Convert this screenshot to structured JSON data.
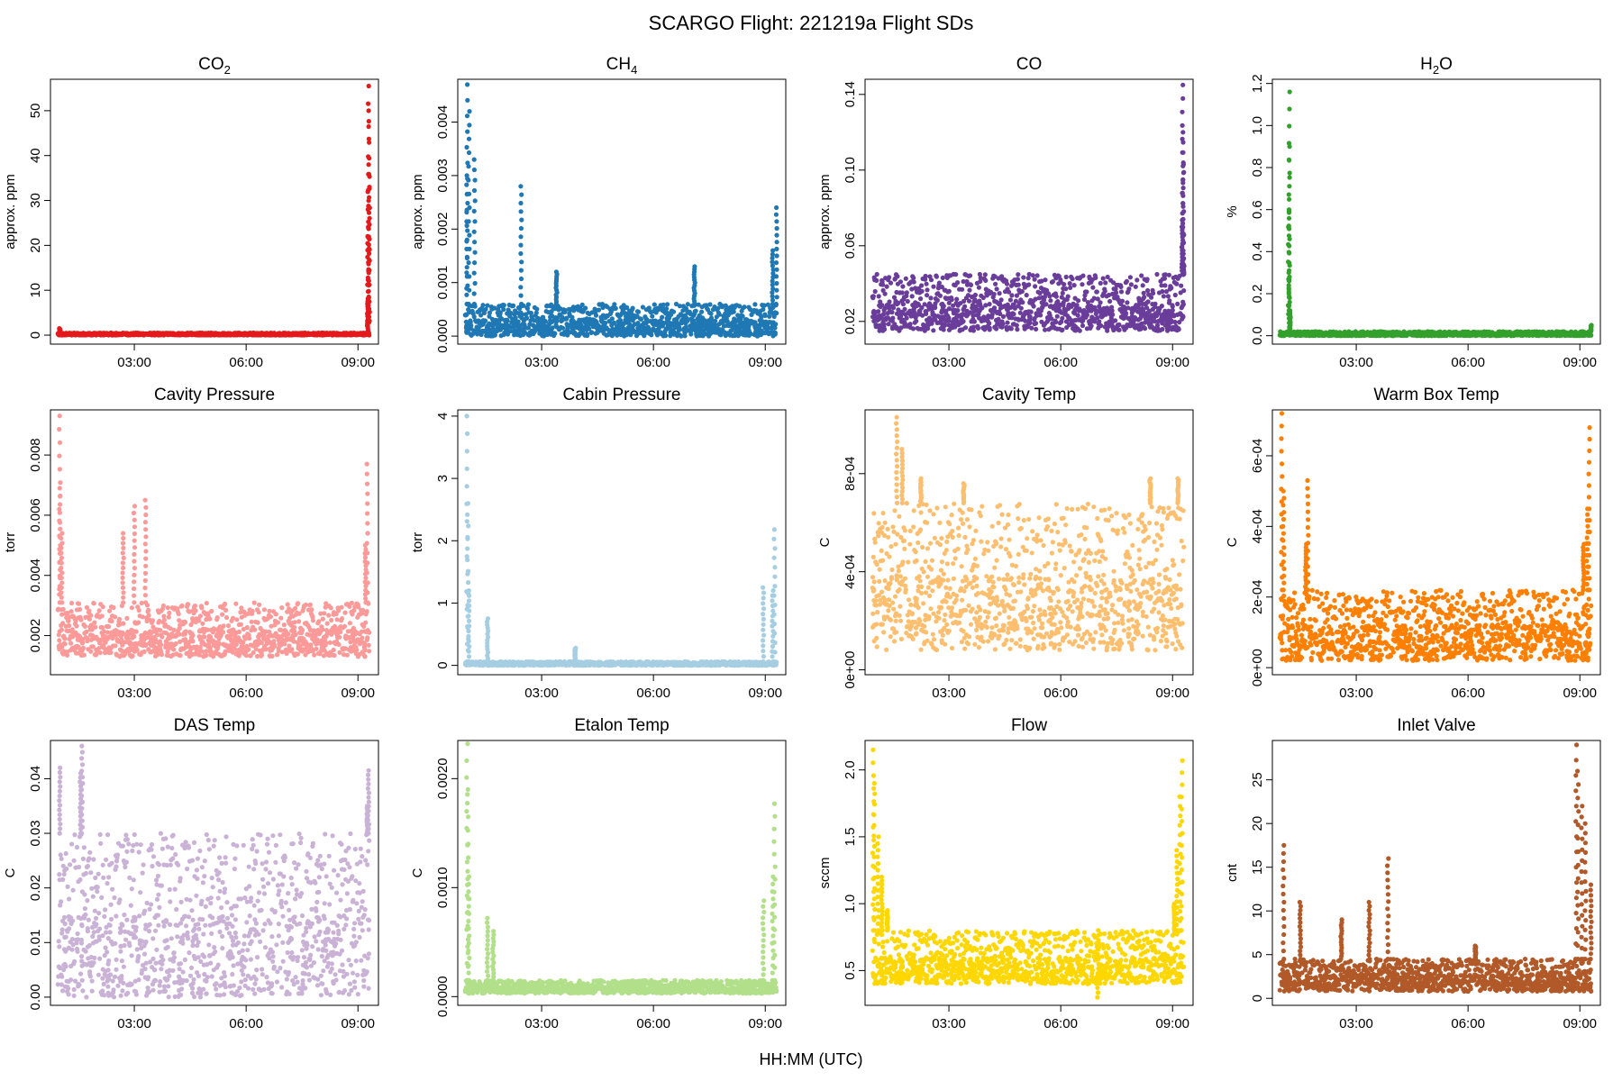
{
  "figure": {
    "title": "SCARGO Flight: 221219a  Flight SDs",
    "xlabel": "HH:MM (UTC)"
  },
  "chart_data": [
    {
      "name": "co2",
      "type": "scatter",
      "title": "CO2",
      "title_sub": "2",
      "title_base": "CO",
      "ylabel": "approx. ppm",
      "color": "#E31A1C",
      "x_range_hours": [
        0.75,
        9.55
      ],
      "ylim": [
        -2.0,
        57.0
      ],
      "y_ticks": [
        0,
        10,
        20,
        30,
        40,
        50
      ],
      "y_tick_labels": [
        "0",
        "10",
        "20",
        "30",
        "40",
        "50"
      ],
      "x_ticks": [
        3,
        6,
        9
      ],
      "x_tick_labels": [
        "03:00",
        "06:00",
        "09:00"
      ],
      "series": {
        "t_start": 0.95,
        "t_end": 9.3,
        "baseline_min": 0.0,
        "baseline_max": 0.5,
        "spikes": [
          {
            "t": 1.0,
            "v": 1.5
          },
          {
            "t": 9.28,
            "v": 55.5
          },
          {
            "t": 9.29,
            "v": 50.0
          },
          {
            "t": 9.3,
            "v": 38.0
          },
          {
            "t": 9.27,
            "v": 22.0
          },
          {
            "t": 9.3,
            "v": 33.0
          },
          {
            "t": 9.26,
            "v": 8.0
          }
        ]
      }
    },
    {
      "name": "ch4",
      "type": "scatter",
      "title": "CH4",
      "title_sub": "4",
      "title_base": "CH",
      "ylabel": "approx. ppm",
      "color": "#1F78B4",
      "x_range_hours": [
        0.75,
        9.55
      ],
      "ylim": [
        -0.00015,
        0.0048
      ],
      "y_ticks": [
        0.0,
        0.001,
        0.002,
        0.003,
        0.004
      ],
      "y_tick_labels": [
        "0.000",
        "0.001",
        "0.002",
        "0.003",
        "0.004"
      ],
      "x_ticks": [
        3,
        6,
        9
      ],
      "x_tick_labels": [
        "03:00",
        "06:00",
        "09:00"
      ],
      "series": {
        "t_start": 0.95,
        "t_end": 9.3,
        "baseline_min": 0.0,
        "baseline_max": 0.0006,
        "spikes": [
          {
            "t": 1.0,
            "v": 0.0047
          },
          {
            "t": 1.05,
            "v": 0.0042
          },
          {
            "t": 1.2,
            "v": 0.0033
          },
          {
            "t": 2.45,
            "v": 0.0028
          },
          {
            "t": 1.0,
            "v": 0.003
          },
          {
            "t": 3.4,
            "v": 0.0012
          },
          {
            "t": 7.1,
            "v": 0.0013
          },
          {
            "t": 9.3,
            "v": 0.0024
          },
          {
            "t": 9.2,
            "v": 0.0016
          }
        ]
      }
    },
    {
      "name": "co",
      "type": "scatter",
      "title": "CO",
      "title_sub": "",
      "title_base": "CO",
      "ylabel": "approx. ppm",
      "color": "#6A3D9A",
      "x_range_hours": [
        0.75,
        9.55
      ],
      "ylim": [
        0.008,
        0.148
      ],
      "y_ticks": [
        0.02,
        0.06,
        0.1,
        0.14
      ],
      "y_tick_labels": [
        "0.02",
        "0.06",
        "0.10",
        "0.14"
      ],
      "x_ticks": [
        3,
        6,
        9
      ],
      "x_tick_labels": [
        "03:00",
        "06:00",
        "09:00"
      ],
      "series": {
        "t_start": 0.95,
        "t_end": 9.3,
        "baseline_min": 0.015,
        "baseline_max": 0.045,
        "spikes": [
          {
            "t": 9.27,
            "v": 0.145
          },
          {
            "t": 9.28,
            "v": 0.12
          },
          {
            "t": 9.29,
            "v": 0.103
          },
          {
            "t": 9.26,
            "v": 0.07
          },
          {
            "t": 9.3,
            "v": 0.05
          }
        ]
      }
    },
    {
      "name": "h2o",
      "type": "scatter",
      "title": "H2O",
      "title_sub": "2",
      "title_base": "H",
      "title_tail": "O",
      "ylabel": "%",
      "color": "#33A02C",
      "x_range_hours": [
        0.75,
        9.55
      ],
      "ylim": [
        -0.04,
        1.22
      ],
      "y_ticks": [
        0.0,
        0.2,
        0.4,
        0.6,
        0.8,
        1.0,
        1.2
      ],
      "y_tick_labels": [
        "0.0",
        "0.2",
        "0.4",
        "0.6",
        "0.8",
        "1.0",
        "1.2"
      ],
      "x_ticks": [
        3,
        6,
        9
      ],
      "x_tick_labels": [
        "03:00",
        "06:00",
        "09:00"
      ],
      "series": {
        "t_start": 0.95,
        "t_end": 9.3,
        "baseline_min": 0.0,
        "baseline_max": 0.02,
        "spikes": [
          {
            "t": 1.2,
            "v": 1.16
          },
          {
            "t": 1.2,
            "v": 0.9
          },
          {
            "t": 1.19,
            "v": 0.6
          },
          {
            "t": 1.2,
            "v": 0.3
          },
          {
            "t": 1.22,
            "v": 0.12
          },
          {
            "t": 9.3,
            "v": 0.05
          }
        ]
      }
    },
    {
      "name": "cavity-pressure",
      "type": "scatter",
      "title": "Cavity Pressure",
      "ylabel": "torr",
      "color": "#FB9A99",
      "x_range_hours": [
        0.75,
        9.55
      ],
      "ylim": [
        0.0007,
        0.0095
      ],
      "y_ticks": [
        0.002,
        0.004,
        0.006,
        0.008
      ],
      "y_tick_labels": [
        "0.002",
        "0.004",
        "0.006",
        "0.008"
      ],
      "x_ticks": [
        3,
        6,
        9
      ],
      "x_tick_labels": [
        "03:00",
        "06:00",
        "09:00"
      ],
      "series": {
        "t_start": 0.95,
        "t_end": 9.3,
        "baseline_min": 0.0013,
        "baseline_max": 0.0031,
        "spikes": [
          {
            "t": 1.0,
            "v": 0.0093
          },
          {
            "t": 1.0,
            "v": 0.0069
          },
          {
            "t": 1.05,
            "v": 0.0054
          },
          {
            "t": 2.7,
            "v": 0.0054
          },
          {
            "t": 3.0,
            "v": 0.0063
          },
          {
            "t": 3.3,
            "v": 0.0065
          },
          {
            "t": 9.25,
            "v": 0.0077
          },
          {
            "t": 9.2,
            "v": 0.005
          }
        ]
      }
    },
    {
      "name": "cabin-pressure",
      "type": "scatter",
      "title": "Cabin Pressure",
      "ylabel": "torr",
      "color": "#A6CEE3",
      "x_range_hours": [
        0.75,
        9.55
      ],
      "ylim": [
        -0.15,
        4.1
      ],
      "y_ticks": [
        0,
        1,
        2,
        3,
        4
      ],
      "y_tick_labels": [
        "0",
        "1",
        "2",
        "3",
        "4"
      ],
      "x_ticks": [
        3,
        6,
        9
      ],
      "x_tick_labels": [
        "03:00",
        "06:00",
        "09:00"
      ],
      "series": {
        "t_start": 0.95,
        "t_end": 9.3,
        "baseline_min": 0.0,
        "baseline_max": 0.06,
        "spikes": [
          {
            "t": 1.0,
            "v": 4.0
          },
          {
            "t": 1.02,
            "v": 2.6
          },
          {
            "t": 1.05,
            "v": 1.2
          },
          {
            "t": 1.55,
            "v": 0.75
          },
          {
            "t": 3.9,
            "v": 0.28
          },
          {
            "t": 8.95,
            "v": 1.25
          },
          {
            "t": 9.25,
            "v": 2.18
          },
          {
            "t": 9.2,
            "v": 1.2
          }
        ]
      }
    },
    {
      "name": "cavity-temp",
      "type": "scatter",
      "title": "Cavity Temp",
      "ylabel": "C",
      "color": "#FDBF6F",
      "x_range_hours": [
        0.75,
        9.55
      ],
      "ylim": [
        -2e-05,
        0.00106
      ],
      "y_ticks": [
        0.0,
        0.0004,
        0.0008
      ],
      "y_tick_labels": [
        "0e+00",
        "4e-04",
        "8e-04"
      ],
      "x_ticks": [
        3,
        6,
        9
      ],
      "x_tick_labels": [
        "03:00",
        "06:00",
        "09:00"
      ],
      "series": {
        "t_start": 0.95,
        "t_end": 9.3,
        "baseline_min": 8e-05,
        "baseline_max": 0.00068,
        "spikes": [
          {
            "t": 1.6,
            "v": 0.00103
          },
          {
            "t": 1.75,
            "v": 0.0009
          },
          {
            "t": 2.25,
            "v": 0.00078
          },
          {
            "t": 3.4,
            "v": 0.00076
          },
          {
            "t": 8.4,
            "v": 0.00078
          },
          {
            "t": 9.15,
            "v": 0.00078
          }
        ]
      }
    },
    {
      "name": "warm-box-temp",
      "type": "scatter",
      "title": "Warm Box Temp",
      "ylabel": "C",
      "color": "#FF7F00",
      "x_range_hours": [
        0.75,
        9.55
      ],
      "ylim": [
        -2e-05,
        0.00073
      ],
      "y_ticks": [
        0.0,
        0.0002,
        0.0004,
        0.0006
      ],
      "y_tick_labels": [
        "0e+00",
        "2e-04",
        "4e-04",
        "6e-04"
      ],
      "x_ticks": [
        3,
        6,
        9
      ],
      "x_tick_labels": [
        "03:00",
        "06:00",
        "09:00"
      ],
      "series": {
        "t_start": 0.95,
        "t_end": 9.3,
        "baseline_min": 2e-05,
        "baseline_max": 0.00022,
        "spikes": [
          {
            "t": 1.0,
            "v": 0.00072
          },
          {
            "t": 1.05,
            "v": 0.0005
          },
          {
            "t": 1.7,
            "v": 0.00053
          },
          {
            "t": 1.65,
            "v": 0.00035
          },
          {
            "t": 9.25,
            "v": 0.00068
          },
          {
            "t": 9.2,
            "v": 0.00045
          },
          {
            "t": 9.1,
            "v": 0.00035
          }
        ]
      }
    },
    {
      "name": "das-temp",
      "type": "scatter",
      "title": "DAS Temp",
      "ylabel": "C",
      "color": "#CAB2D6",
      "x_range_hours": [
        0.75,
        9.55
      ],
      "ylim": [
        -0.0015,
        0.047
      ],
      "y_ticks": [
        0.0,
        0.01,
        0.02,
        0.03,
        0.04
      ],
      "y_tick_labels": [
        "0.00",
        "0.01",
        "0.02",
        "0.03",
        "0.04"
      ],
      "x_ticks": [
        3,
        6,
        9
      ],
      "x_tick_labels": [
        "03:00",
        "06:00",
        "09:00"
      ],
      "series": {
        "t_start": 0.95,
        "t_end": 9.3,
        "baseline_min": 0.0,
        "baseline_max": 0.03,
        "spikes": [
          {
            "t": 1.0,
            "v": 0.042
          },
          {
            "t": 1.6,
            "v": 0.046
          },
          {
            "t": 1.55,
            "v": 0.041
          },
          {
            "t": 9.28,
            "v": 0.0415
          },
          {
            "t": 9.25,
            "v": 0.035
          }
        ]
      }
    },
    {
      "name": "etalon-temp",
      "type": "scatter",
      "title": "Etalon Temp",
      "ylabel": "C",
      "color": "#B2DF8A",
      "x_range_hours": [
        0.75,
        9.55
      ],
      "ylim": [
        -8e-05,
        0.00235
      ],
      "y_ticks": [
        0.0,
        0.001,
        0.002
      ],
      "y_tick_labels": [
        "0.0000",
        "0.0010",
        "0.0020"
      ],
      "x_ticks": [
        3,
        6,
        9
      ],
      "x_tick_labels": [
        "03:00",
        "06:00",
        "09:00"
      ],
      "series": {
        "t_start": 0.95,
        "t_end": 9.3,
        "baseline_min": 3e-05,
        "baseline_max": 0.00015,
        "spikes": [
          {
            "t": 1.0,
            "v": 0.00232
          },
          {
            "t": 1.02,
            "v": 0.0019
          },
          {
            "t": 1.05,
            "v": 0.0011
          },
          {
            "t": 1.55,
            "v": 0.00072
          },
          {
            "t": 1.7,
            "v": 0.0006
          },
          {
            "t": 8.95,
            "v": 0.00088
          },
          {
            "t": 9.25,
            "v": 0.00177
          },
          {
            "t": 9.2,
            "v": 0.0011
          }
        ]
      }
    },
    {
      "name": "flow",
      "type": "scatter",
      "title": "Flow",
      "ylabel": "sccm",
      "color": "#FFD700",
      "x_range_hours": [
        0.75,
        9.55
      ],
      "ylim": [
        0.24,
        2.22
      ],
      "y_ticks": [
        0.5,
        1.0,
        1.5,
        2.0
      ],
      "y_tick_labels": [
        "0.5",
        "1.0",
        "1.5",
        "2.0"
      ],
      "x_ticks": [
        3,
        6,
        9
      ],
      "x_tick_labels": [
        "03:00",
        "06:00",
        "09:00"
      ],
      "series": {
        "t_start": 0.95,
        "t_end": 9.3,
        "baseline_min": 0.4,
        "baseline_max": 0.8,
        "spikes": [
          {
            "t": 0.97,
            "v": 2.15
          },
          {
            "t": 1.0,
            "v": 1.9
          },
          {
            "t": 1.1,
            "v": 1.5
          },
          {
            "t": 1.2,
            "v": 1.2
          },
          {
            "t": 1.35,
            "v": 0.95
          },
          {
            "t": 9.25,
            "v": 2.07
          },
          {
            "t": 9.2,
            "v": 1.8
          },
          {
            "t": 9.12,
            "v": 1.4
          },
          {
            "t": 9.05,
            "v": 1.0
          },
          {
            "t": 7.0,
            "v": 0.3
          }
        ]
      }
    },
    {
      "name": "inlet-valve",
      "type": "scatter",
      "title": "Inlet Valve",
      "ylabel": "cnt",
      "color": "#B15928",
      "x_range_hours": [
        0.75,
        9.55
      ],
      "ylim": [
        -0.8,
        29.5
      ],
      "y_ticks": [
        0,
        5,
        10,
        15,
        20,
        25
      ],
      "y_tick_labels": [
        "0",
        "5",
        "10",
        "15",
        "20",
        "25"
      ],
      "x_ticks": [
        3,
        6,
        9
      ],
      "x_tick_labels": [
        "03:00",
        "06:00",
        "09:00"
      ],
      "series": {
        "t_start": 0.95,
        "t_end": 9.3,
        "baseline_min": 0.8,
        "baseline_max": 4.5,
        "spikes": [
          {
            "t": 1.05,
            "v": 17.5
          },
          {
            "t": 1.5,
            "v": 11.0
          },
          {
            "t": 2.6,
            "v": 9.0
          },
          {
            "t": 3.35,
            "v": 11.0
          },
          {
            "t": 3.85,
            "v": 16.0
          },
          {
            "t": 6.2,
            "v": 6.0
          },
          {
            "t": 8.9,
            "v": 29.0
          },
          {
            "t": 8.95,
            "v": 26.0
          },
          {
            "t": 9.05,
            "v": 22.0
          },
          {
            "t": 9.15,
            "v": 20.0
          },
          {
            "t": 9.3,
            "v": 13.0
          }
        ]
      }
    }
  ]
}
